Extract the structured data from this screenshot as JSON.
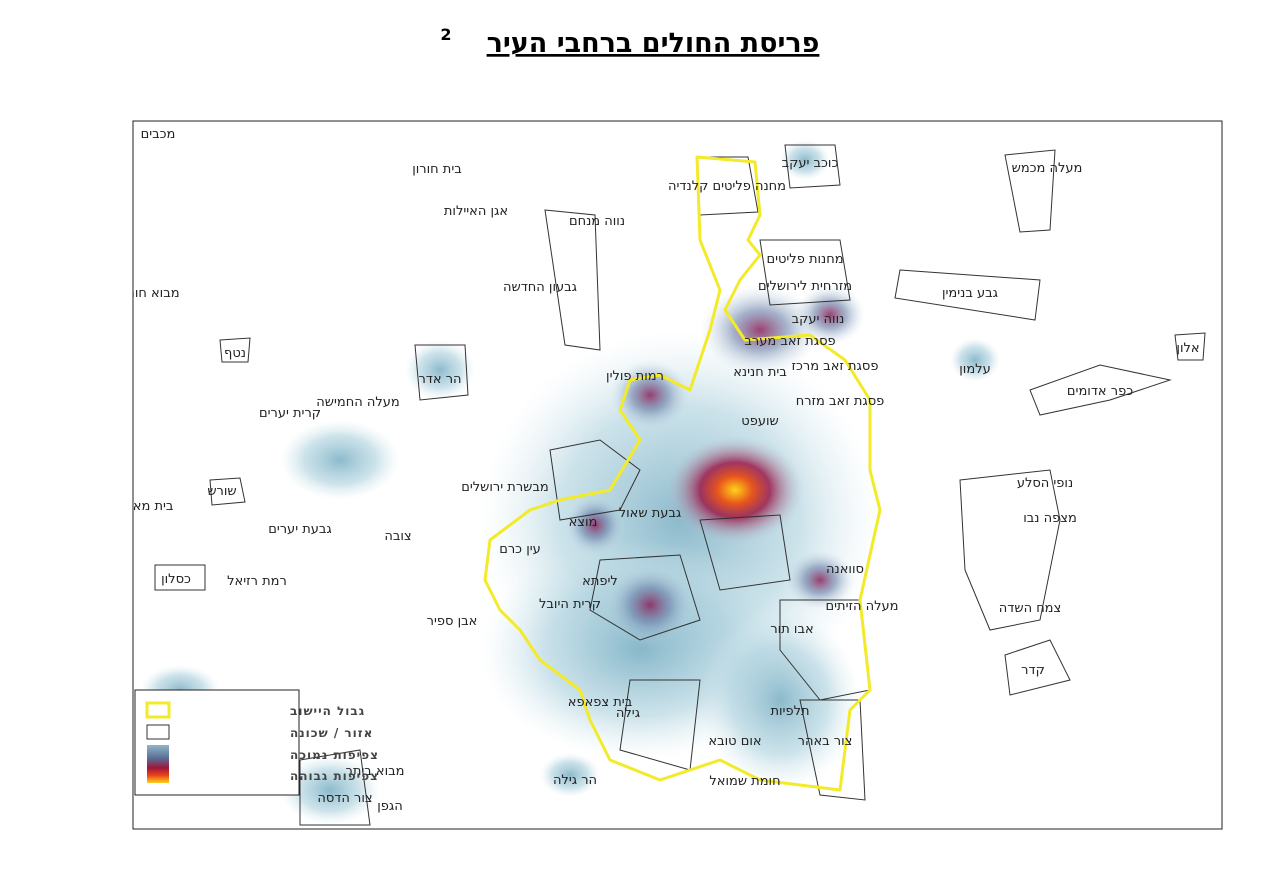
{
  "header": {
    "title": "פריסת החולים ברחבי העיר",
    "footnote_mark": "2"
  },
  "legend": {
    "items": [
      "גבול היישוב",
      "אזור / שכונה",
      "צפיפות נמוכה",
      "צפיפות גבוהה"
    ]
  },
  "places": [
    {
      "label": "מכבים"
    },
    {
      "label": "בית חורון"
    },
    {
      "label": "כוכב יעקב"
    },
    {
      "label": "מחנה פליטים קלנדיה"
    },
    {
      "label": "מעלה מכמש"
    },
    {
      "label": "אגן האיילות"
    },
    {
      "label": "נווה מנחם"
    },
    {
      "label": "גבעון החדשה"
    },
    {
      "label": "מבוא חורון"
    },
    {
      "label": "גבע בנימין"
    },
    {
      "label": "מחנות פליטים"
    },
    {
      "label": "מזרחית לירושלים"
    },
    {
      "label": "נווה יעקב"
    },
    {
      "label": "פסגת זאב מערב"
    },
    {
      "label": "בית חנינא"
    },
    {
      "label": "פסגת זאב מרכז"
    },
    {
      "label": "פסגת זאב מזרח"
    },
    {
      "label": "אלון"
    },
    {
      "label": "עלמון"
    },
    {
      "label": "כפר אדומים"
    },
    {
      "label": "נטף"
    },
    {
      "label": "הר אדר"
    },
    {
      "label": "רמות פולין"
    },
    {
      "label": "מעלה החמישה"
    },
    {
      "label": "קרית יערים"
    },
    {
      "label": "שורש"
    },
    {
      "label": "בית מאיר"
    },
    {
      "label": "גבעת יערים"
    },
    {
      "label": "צובה"
    },
    {
      "label": "כסלון"
    },
    {
      "label": "רמת רזיאל"
    },
    {
      "label": "אבן ספיר"
    },
    {
      "label": "נופי הסלע"
    },
    {
      "label": "מצפה נבו"
    },
    {
      "label": "צמח השדה"
    },
    {
      "label": "קדר"
    },
    {
      "label": "מעלה הזיתים"
    },
    {
      "label": "סוואנה"
    },
    {
      "label": "אבו תור"
    },
    {
      "label": "גילה"
    },
    {
      "label": "הר גילה"
    },
    {
      "label": "בית צפאפא"
    },
    {
      "label": "מבוא ביתר"
    },
    {
      "label": "צור הדסה"
    },
    {
      "label": "הגפן"
    },
    {
      "label": "צור באהר"
    },
    {
      "label": "אום טובא"
    },
    {
      "label": "חומת שמואל"
    },
    {
      "label": "שועפט"
    },
    {
      "label": "גבעת שאול"
    },
    {
      "label": "קרית היובל"
    },
    {
      "label": "עין כרם"
    },
    {
      "label": "מבשרת ירושלים"
    },
    {
      "label": "תלפיות"
    },
    {
      "label": "ליפתא"
    },
    {
      "label": "מוצא"
    }
  ]
}
